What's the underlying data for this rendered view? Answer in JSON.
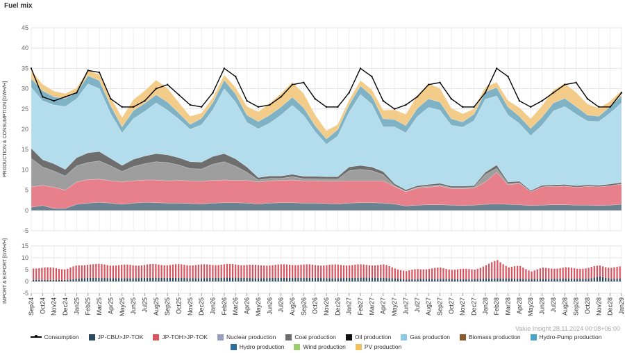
{
  "title": "Fuel mix",
  "watermark": "Value Insight 28.11.2024 00:08+06:00",
  "chart_data": [
    {
      "type": "area",
      "name": "production-consumption",
      "ylabel": "PRODUCTION & CONSUMPTION [GWH/H]",
      "ylim": [
        -5,
        45
      ],
      "yticks": [
        -5,
        0,
        5,
        10,
        15,
        20,
        25,
        30,
        35,
        40,
        45
      ],
      "x_labels": [
        "Sep24",
        "Oct24",
        "Nov24",
        "Dec24",
        "Jan25",
        "Feb25",
        "Mar25",
        "Apr25",
        "May25",
        "Jun25",
        "Jul25",
        "Aug25",
        "Sep25",
        "Oct25",
        "Nov25",
        "Dec25",
        "Jan26",
        "Feb26",
        "Mar26",
        "Apr26",
        "May26",
        "Jun26",
        "Jul26",
        "Aug26",
        "Sep26",
        "Oct26",
        "Nov26",
        "Dec26",
        "Jan27",
        "Feb27",
        "Mar27",
        "Apr27",
        "May27",
        "Jun27",
        "Jul27",
        "Aug27",
        "Sep27",
        "Oct27",
        "Nov27",
        "Dec27",
        "Jan28",
        "Feb28",
        "Mar28",
        "Apr28",
        "May28",
        "Jun28",
        "Jul28",
        "Aug28",
        "Sep28",
        "Oct28",
        "Nov28",
        "Dec28",
        "Jan29"
      ],
      "series": [
        {
          "name": "Hydro production",
          "color": "#6b8290",
          "values": [
            0.8,
            1.2,
            0.5,
            0.5,
            1.5,
            1.8,
            2,
            1.8,
            1.5,
            1.8,
            2,
            1.9,
            1.8,
            1.8,
            1.7,
            1.6,
            1.8,
            1.9,
            1.9,
            1.8,
            1.6,
            1.8,
            1.9,
            1.9,
            1.8,
            1.8,
            1.7,
            1.6,
            1.8,
            1.9,
            1.9,
            1.8,
            1.6,
            1.1,
            1.3,
            1.4,
            1.4,
            1.3,
            1.2,
            1.3,
            1.5,
            1.6,
            1.5,
            1.4,
            1.2,
            1.3,
            1.4,
            1.4,
            1.3,
            1.3,
            1.2,
            1.3,
            1.5
          ]
        },
        {
          "name": "JP-TOH>JP-TOK",
          "color": "#e8808b",
          "values": [
            5,
            5,
            5.2,
            4.5,
            5.5,
            5.8,
            5.7,
            5.5,
            5.6,
            5.5,
            5.5,
            5.6,
            5.5,
            5.6,
            5.6,
            5.6,
            5.6,
            5.6,
            5.5,
            5.6,
            5.4,
            5.5,
            5.5,
            5.6,
            5.5,
            5.5,
            5.5,
            5.6,
            5.5,
            5.4,
            5.4,
            5.5,
            4.3,
            3.5,
            4.2,
            4.3,
            4.6,
            4.1,
            4.2,
            4.2,
            5.5,
            7.8,
            4.8,
            5.3,
            3.4,
            4.5,
            4.5,
            4.6,
            4.4,
            4.6,
            4.6,
            4.8,
            5
          ]
        },
        {
          "name": "Coal production",
          "color": "#9e9e9e",
          "values": [
            7,
            4.5,
            4,
            3.5,
            4,
            4.2,
            4.5,
            3.7,
            2.5,
            3.5,
            4,
            4.5,
            4.5,
            3.8,
            3,
            3,
            4,
            4.5,
            3.5,
            2,
            0.5,
            0.6,
            0.5,
            0.8,
            0.5,
            0.5,
            0.5,
            0.5,
            2.5,
            2.8,
            2.5,
            1.5,
            0.2,
            0.1,
            0.2,
            0.3,
            0.3,
            0.2,
            0.2,
            0.2,
            1.8,
            1,
            0.2,
            0.1,
            0,
            0,
            0,
            0,
            0,
            0,
            0,
            0,
            0
          ]
        },
        {
          "name": "Nuclear production",
          "color": "#6e6e6e",
          "values": [
            2.5,
            1.8,
            1.8,
            1.6,
            2,
            2.4,
            2.3,
            1.8,
            1.5,
            1.8,
            1.9,
            2,
            1.9,
            1.8,
            1.7,
            1.7,
            1.9,
            2,
            1.8,
            1.3,
            0.6,
            0.6,
            0.6,
            0.6,
            0.6,
            0.6,
            0.6,
            0.6,
            0.9,
            1,
            0.9,
            0.8,
            0.5,
            0.4,
            0.4,
            0.4,
            0.4,
            0.4,
            0.4,
            0.4,
            0.6,
            0.8,
            0.5,
            0.4,
            0.3,
            0.4,
            0.4,
            0.4,
            0.4,
            0.4,
            0.4,
            0.4,
            0.4
          ]
        },
        {
          "name": "Gas production",
          "color": "#b3dcec",
          "values": [
            15,
            14.5,
            14.5,
            15.5,
            14.5,
            17,
            15.5,
            11,
            8,
            10,
            11,
            12.5,
            11,
            9.5,
            8,
            9.2,
            11.5,
            16,
            14,
            11,
            12,
            13,
            15,
            17,
            15,
            11,
            8,
            10,
            13.5,
            17.5,
            15.5,
            11,
            14,
            14,
            17,
            19,
            18,
            15,
            14.5,
            16,
            18,
            17,
            16.5,
            14.2,
            13.5,
            14.8,
            18.2,
            19.2,
            17.6,
            15.7,
            15.7,
            17.5,
            19.6
          ]
        },
        {
          "name": "Hydro-Pump production",
          "color": "#7fb2c4",
          "values": [
            2.2,
            2.5,
            2,
            2,
            1.6,
            2,
            2,
            2,
            1.5,
            2,
            2,
            2,
            2,
            1.5,
            1.2,
            1.6,
            1.8,
            2.1,
            2,
            1.8,
            1.8,
            2,
            2,
            2,
            1.9,
            1.5,
            1.3,
            1.6,
            1.8,
            2.1,
            2,
            2,
            1.8,
            1.8,
            2,
            2.1,
            2,
            1.6,
            1.3,
            1.6,
            1.8,
            2.1,
            2,
            1.8,
            1.8,
            2,
            2,
            2,
            1.9,
            1.5,
            1.3,
            1.6,
            1.8
          ]
        },
        {
          "name": "PV production",
          "color": "#f3cc89",
          "values": [
            2,
            1.6,
            1.4,
            1.2,
            1.1,
            1.3,
            1.5,
            2,
            2.3,
            2.7,
            3.1,
            3.6,
            3.4,
            2.6,
            2,
            1.3,
            1.2,
            1.3,
            1.6,
            2.1,
            2.4,
            2.9,
            3.3,
            3.7,
            3.5,
            2.7,
            2,
            1.3,
            1.2,
            1.3,
            1.6,
            2.1,
            2.4,
            2.8,
            3.2,
            3.7,
            3.4,
            2.6,
            2,
            1.3,
            1.2,
            1.3,
            1.6,
            2.1,
            2.4,
            2.8,
            3.2,
            3.7,
            3.5,
            2.7,
            2,
            1.3,
            1.2
          ]
        }
      ],
      "consumption": {
        "name": "Consumption",
        "color": "#000000",
        "values": [
          35,
          28,
          27,
          28,
          29,
          34.5,
          34,
          27.5,
          25.5,
          25.5,
          27,
          30,
          31,
          28.5,
          26,
          25.5,
          29,
          35,
          33,
          27,
          25.5,
          26,
          28,
          31,
          31.5,
          27.5,
          25.5,
          25.5,
          29,
          35,
          33,
          27,
          25,
          26,
          28,
          31,
          31.5,
          27.5,
          25.5,
          25.5,
          29,
          35,
          33,
          27,
          25.5,
          27,
          29,
          31,
          31.5,
          27.5,
          25.5,
          25.5,
          29
        ]
      }
    },
    {
      "type": "bar",
      "name": "import-export",
      "ylabel": "IMPORT & EXPORT [GWH/H]",
      "ylim": [
        -5,
        15
      ],
      "yticks": [
        -5,
        0,
        5,
        10,
        15
      ],
      "series": [
        {
          "name": "JP-CBU>JP-TOK",
          "color": "#2a4a5e",
          "values": [
            0.7,
            0.7,
            0.6,
            0.6,
            1.2,
            1.5,
            1.5,
            1.4,
            1.3,
            1.4,
            1.5,
            1.6,
            1.5,
            1.5,
            1.4,
            1.4,
            1.5,
            1.6,
            1.6,
            1.5,
            1.3,
            1.5,
            1.5,
            1.6,
            1.5,
            1.5,
            1.4,
            1.4,
            1.5,
            1.6,
            1.6,
            1.5,
            1.3,
            0.8,
            1,
            1.1,
            1.1,
            1,
            0.9,
            1,
            1.2,
            1.3,
            1.2,
            1.1,
            1,
            1.1,
            1.1,
            1.2,
            1.1,
            1.1,
            2.1,
            1.1,
            1.2
          ]
        },
        {
          "name": "JP-TOH>JP-TOK",
          "color": "#d9545e",
          "values": [
            5,
            5,
            5.2,
            4.5,
            5.5,
            5.8,
            5.7,
            5.5,
            5.6,
            5.5,
            5.5,
            5.6,
            5.5,
            5.6,
            5.6,
            5.6,
            5.6,
            5.6,
            5.5,
            5.6,
            5.4,
            5.5,
            5.5,
            5.6,
            5.5,
            5.5,
            5.5,
            5.6,
            5.5,
            5.4,
            5.4,
            5.5,
            4.3,
            3.5,
            4.2,
            4.3,
            4.6,
            4.1,
            4.2,
            4.2,
            5.5,
            7.8,
            4.8,
            5.3,
            3.4,
            4.5,
            4.5,
            4.6,
            4.4,
            4.6,
            4.6,
            4.8,
            5
          ]
        }
      ]
    }
  ],
  "legend": {
    "row1": [
      {
        "label": "Consumption",
        "color": "#000000",
        "kind": "line"
      },
      {
        "label": "JP-CBU>JP-TOK",
        "color": "#2a4a5e",
        "kind": "box"
      },
      {
        "label": "JP-TOH>JP-TOK",
        "color": "#d9545e",
        "kind": "box"
      },
      {
        "label": "Nuclear production",
        "color": "#9a9fc0",
        "kind": "box"
      },
      {
        "label": "Coal production",
        "color": "#6e6e6e",
        "kind": "box"
      },
      {
        "label": "Oil production",
        "color": "#111111",
        "kind": "box"
      },
      {
        "label": "Gas production",
        "color": "#8ccbe6",
        "kind": "box"
      },
      {
        "label": "Biomass production",
        "color": "#8a5a2e",
        "kind": "box"
      },
      {
        "label": "Hydro-Pump production",
        "color": "#4aa6c8",
        "kind": "box"
      }
    ],
    "row2": [
      {
        "label": "Hydro production",
        "color": "#2d6f9a",
        "kind": "box"
      },
      {
        "label": "Wind production",
        "color": "#9ccc6e",
        "kind": "box"
      },
      {
        "label": "PV production",
        "color": "#f0c060",
        "kind": "box"
      }
    ]
  }
}
